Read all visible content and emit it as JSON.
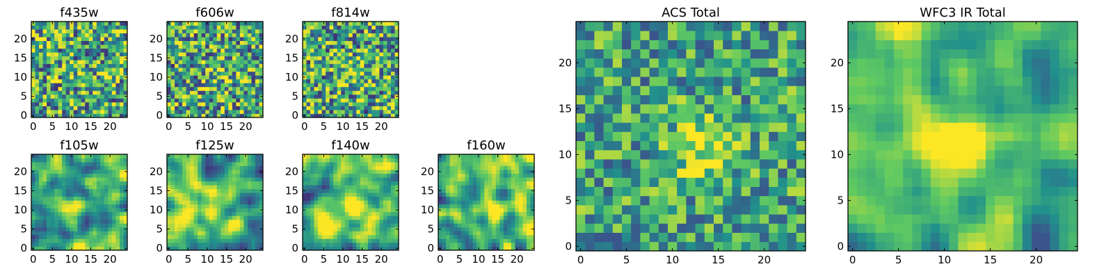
{
  "chart_data": [
    {
      "type": "heatmap",
      "title": "f435w",
      "seed": 11,
      "grid": 25,
      "contrast": 0.9,
      "xticks": [
        0,
        5,
        10,
        15,
        20
      ],
      "yticks": [
        0,
        5,
        10,
        15,
        20
      ],
      "xlim": [
        0,
        24
      ],
      "ylim": [
        0,
        24
      ],
      "peak": [
        13,
        11
      ],
      "peak_strength": 0.15,
      "smooth": 0,
      "noise": 1.0
    },
    {
      "type": "heatmap",
      "title": "f606w",
      "seed": 23,
      "grid": 25,
      "contrast": 0.9,
      "xticks": [
        0,
        5,
        10,
        15,
        20
      ],
      "yticks": [
        0,
        5,
        10,
        15,
        20
      ],
      "xlim": [
        0,
        24
      ],
      "ylim": [
        0,
        24
      ],
      "peak": [
        13,
        11
      ],
      "peak_strength": 0.35,
      "smooth": 0,
      "noise": 1.0
    },
    {
      "type": "heatmap",
      "title": "f814w",
      "seed": 37,
      "grid": 25,
      "contrast": 0.9,
      "xticks": [
        0,
        5,
        10,
        15,
        20
      ],
      "yticks": [
        0,
        5,
        10,
        15,
        20
      ],
      "xlim": [
        0,
        24
      ],
      "ylim": [
        0,
        24
      ],
      "peak": [
        13,
        11
      ],
      "peak_strength": 0.6,
      "smooth": 0,
      "noise": 1.0
    },
    {
      "type": "heatmap",
      "title": "f105w",
      "seed": 41,
      "grid": 25,
      "contrast": 1.0,
      "xticks": [
        0,
        5,
        10,
        15,
        20
      ],
      "yticks": [
        0,
        5,
        10,
        15,
        20
      ],
      "xlim": [
        0,
        24
      ],
      "ylim": [
        0,
        24
      ],
      "peak": [
        11,
        10
      ],
      "peak_strength": 0.7,
      "smooth": 2,
      "noise": 1.0
    },
    {
      "type": "heatmap",
      "title": "f125w",
      "seed": 53,
      "grid": 25,
      "contrast": 1.0,
      "xticks": [
        0,
        5,
        10,
        15,
        20
      ],
      "yticks": [
        0,
        5,
        10,
        15,
        20
      ],
      "xlim": [
        0,
        24
      ],
      "ylim": [
        0,
        24
      ],
      "peak": [
        11,
        10
      ],
      "peak_strength": 0.5,
      "smooth": 2,
      "noise": 1.0
    },
    {
      "type": "heatmap",
      "title": "f140w",
      "seed": 67,
      "grid": 25,
      "contrast": 1.0,
      "xticks": [
        0,
        5,
        10,
        15,
        20
      ],
      "yticks": [
        0,
        5,
        10,
        15,
        20
      ],
      "xlim": [
        0,
        24
      ],
      "ylim": [
        0,
        24
      ],
      "peak": [
        12,
        11
      ],
      "peak_strength": 0.7,
      "smooth": 2,
      "noise": 1.0
    },
    {
      "type": "heatmap",
      "title": "f160w",
      "seed": 79,
      "grid": 25,
      "contrast": 1.0,
      "xticks": [
        0,
        5,
        10,
        15,
        20
      ],
      "yticks": [
        0,
        5,
        10,
        15,
        20
      ],
      "xlim": [
        0,
        24
      ],
      "ylim": [
        0,
        24
      ],
      "peak": [
        14,
        11
      ],
      "peak_strength": 0.7,
      "smooth": 2,
      "noise": 1.0
    },
    {
      "type": "heatmap",
      "title": "ACS Total",
      "seed": 97,
      "grid": 25,
      "contrast": 0.85,
      "xticks": [
        0,
        5,
        10,
        15,
        20
      ],
      "yticks": [
        0,
        5,
        10,
        15,
        20
      ],
      "xlim": [
        0,
        24
      ],
      "ylim": [
        0,
        24
      ],
      "peak": [
        13,
        11
      ],
      "peak_strength": 0.9,
      "smooth": 0,
      "noise": 0.75
    },
    {
      "type": "heatmap",
      "title": "WFC3 IR Total",
      "seed": 131,
      "grid": 25,
      "contrast": 1.0,
      "xticks": [
        0,
        5,
        10,
        15,
        20
      ],
      "yticks": [
        0,
        5,
        10,
        15,
        20
      ],
      "xlim": [
        0,
        24
      ],
      "ylim": [
        0,
        24
      ],
      "peak": [
        12,
        11
      ],
      "peak_strength": 1.4,
      "smooth": 2,
      "noise": 0.8
    }
  ],
  "colormap": [
    "#440154",
    "#3b528b",
    "#21918c",
    "#5ec962",
    "#fde725"
  ]
}
